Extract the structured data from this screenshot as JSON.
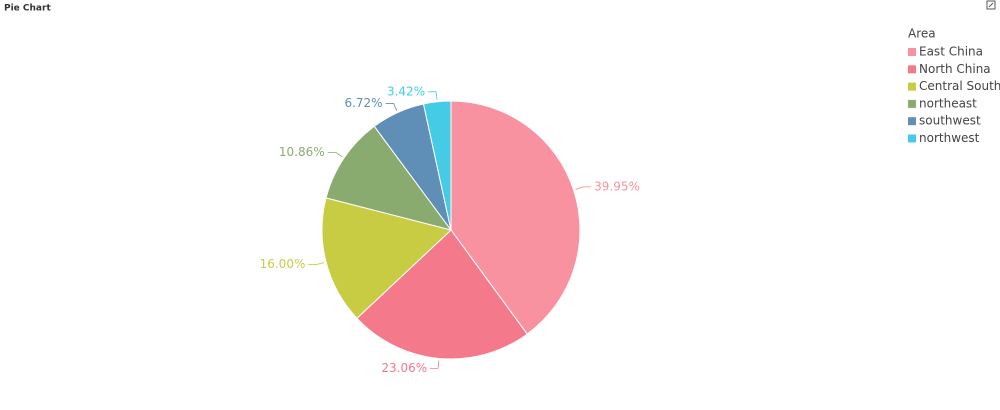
{
  "chart_data": {
    "type": "pie",
    "title": "Pie Chart",
    "legend_title": "Area",
    "categories": [
      "East China",
      "North China",
      "Central South",
      "northeast",
      "southwest",
      "northwest"
    ],
    "values": [
      39.95,
      23.06,
      16.0,
      10.86,
      6.72,
      3.42
    ],
    "value_labels": [
      "39.95%",
      "23.06%",
      "16.00%",
      "10.86%",
      "6.72%",
      "3.42%"
    ],
    "colors": [
      "#f892a0",
      "#f47a8b",
      "#c8cc42",
      "#8aab70",
      "#5f8fb6",
      "#45cbe6"
    ],
    "legend_position": "top-right"
  }
}
